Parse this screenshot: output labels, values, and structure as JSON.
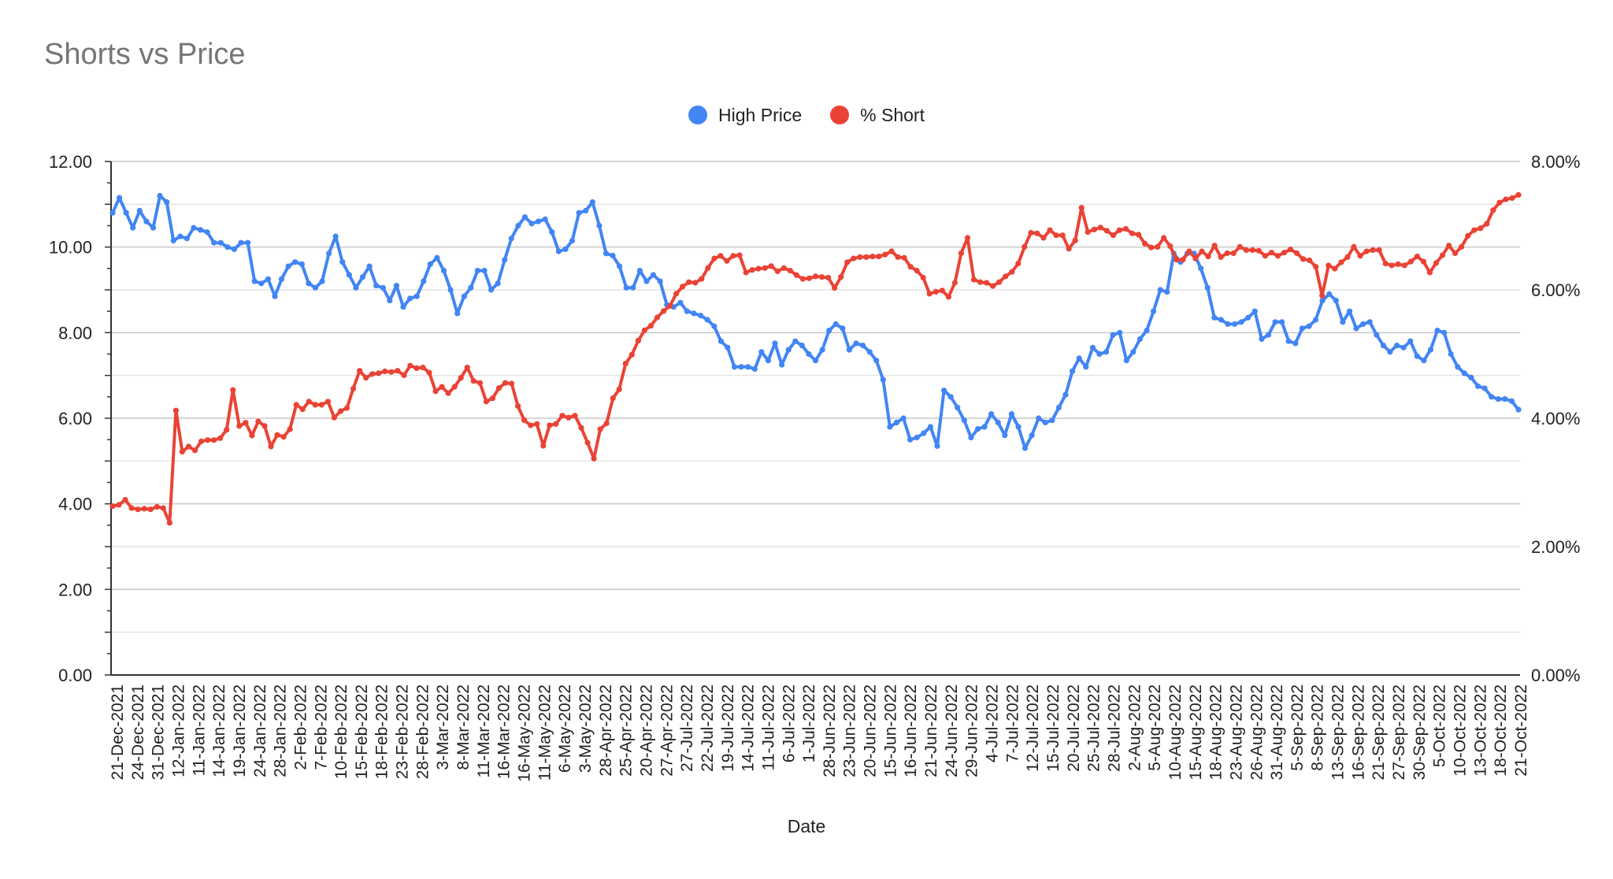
{
  "chart_data": {
    "type": "line",
    "title": "Shorts vs Price",
    "xlabel": "Date",
    "ylabel_left": "",
    "ylabel_right": "",
    "ylim_left": [
      0,
      12
    ],
    "ylim_right": [
      0,
      0.08
    ],
    "left_tick_labels": [
      "0.00",
      "2.00",
      "4.00",
      "6.00",
      "8.00",
      "10.00",
      "12.00"
    ],
    "right_tick_labels": [
      "0.00%",
      "2.00%",
      "4.00%",
      "6.00%",
      "8.00%"
    ],
    "grid": true,
    "legend_position": "top",
    "x_tick_labels": [
      "21-Dec-2021",
      "24-Dec-2021",
      "31-Dec-2021",
      "12-Jan-2022",
      "11-Jan-2022",
      "14-Jan-2022",
      "19-Jan-2022",
      "24-Jan-2022",
      "28-Jan-2022",
      "2-Feb-2022",
      "7-Feb-2022",
      "10-Feb-2022",
      "15-Feb-2022",
      "18-Feb-2022",
      "23-Feb-2022",
      "28-Feb-2022",
      "3-Mar-2022",
      "8-Mar-2022",
      "11-Mar-2022",
      "16-Mar-2022",
      "16-May-2022",
      "11-May-2022",
      "6-May-2022",
      "3-May-2022",
      "28-Apr-2022",
      "25-Apr-2022",
      "20-Apr-2022",
      "27-Apr-2022",
      "27-Jul-2022",
      "22-Jul-2022",
      "19-Jul-2022",
      "14-Jul-2022",
      "11-Jul-2022",
      "6-Jul-2022",
      "1-Jul-2022",
      "28-Jun-2022",
      "23-Jun-2022",
      "20-Jun-2022",
      "15-Jun-2022",
      "16-Jun-2022",
      "21-Jun-2022",
      "24-Jun-2022",
      "29-Jun-2022",
      "4-Jul-2022",
      "7-Jul-2022",
      "12-Jul-2022",
      "15-Jul-2022",
      "20-Jul-2022",
      "25-Jul-2022",
      "28-Jul-2022",
      "2-Aug-2022",
      "5-Aug-2022",
      "10-Aug-2022",
      "15-Aug-2022",
      "18-Aug-2022",
      "23-Aug-2022",
      "26-Aug-2022",
      "31-Aug-2022",
      "5-Sep-2022",
      "8-Sep-2022",
      "13-Sep-2022",
      "16-Sep-2022",
      "21-Sep-2022",
      "27-Sep-2022",
      "30-Sep-2022",
      "5-Oct-2022",
      "10-Oct-2022",
      "13-Oct-2022",
      "18-Oct-2022",
      "21-Oct-2022"
    ],
    "series": [
      {
        "name": "High Price",
        "axis": "left",
        "color": "#4285f4",
        "values": [
          10.8,
          11.15,
          10.8,
          10.45,
          10.85,
          10.6,
          10.45,
          11.2,
          11.05,
          10.15,
          10.25,
          10.2,
          10.45,
          10.4,
          10.35,
          10.1,
          10.1,
          10.0,
          9.95,
          10.1,
          10.1,
          9.2,
          9.15,
          9.25,
          8.85,
          9.25,
          9.55,
          9.65,
          9.6,
          9.15,
          9.05,
          9.2,
          9.85,
          10.25,
          9.65,
          9.35,
          9.05,
          9.3,
          9.55,
          9.1,
          9.05,
          8.75,
          9.1,
          8.6,
          8.8,
          8.85,
          9.2,
          9.6,
          9.75,
          9.45,
          9.0,
          8.45,
          8.85,
          9.05,
          9.45,
          9.45,
          9.0,
          9.15,
          9.7,
          10.2,
          10.5,
          10.7,
          10.55,
          10.6,
          10.65,
          10.35,
          9.9,
          9.95,
          10.15,
          10.8,
          10.85,
          11.05,
          10.5,
          9.85,
          9.8,
          9.55,
          9.05,
          9.05,
          9.45,
          9.2,
          9.35,
          9.2,
          8.65,
          8.6,
          8.7,
          8.5,
          8.45,
          8.4,
          8.3,
          8.15,
          7.8,
          7.65,
          7.2,
          7.2,
          7.2,
          7.15,
          7.55,
          7.35,
          7.75,
          7.25,
          7.6,
          7.8,
          7.7,
          7.5,
          7.35,
          7.6,
          8.05,
          8.2,
          8.1,
          7.6,
          7.75,
          7.7,
          7.55,
          7.35,
          6.9,
          5.8,
          5.9,
          6.0,
          5.5,
          5.55,
          5.65,
          5.8,
          5.35,
          6.65,
          6.5,
          6.25,
          5.95,
          5.55,
          5.75,
          5.8,
          6.1,
          5.9,
          5.6,
          6.1,
          5.8,
          5.3,
          5.6,
          6.0,
          5.9,
          5.95,
          6.25,
          6.55,
          7.1,
          7.4,
          7.2,
          7.65,
          7.5,
          7.55,
          7.95,
          8.0,
          7.35,
          7.55,
          7.85,
          8.05,
          8.5,
          9.0,
          8.95,
          9.85,
          9.65,
          9.85,
          9.85,
          9.5,
          9.05,
          8.35,
          8.3,
          8.2,
          8.2,
          8.25,
          8.35,
          8.5,
          7.85,
          7.95,
          8.25,
          8.25,
          7.8,
          7.75,
          8.1,
          8.15,
          8.3,
          8.75,
          8.9,
          8.75,
          8.25,
          8.5,
          8.1,
          8.2,
          8.25,
          7.95,
          7.7,
          7.55,
          7.7,
          7.65,
          7.8,
          7.45,
          7.35,
          7.6,
          8.05,
          8.0,
          7.5,
          7.2,
          7.05,
          6.95,
          6.75,
          6.7,
          6.5,
          6.45,
          6.45,
          6.4,
          6.2
        ]
      },
      {
        "name": "% Short",
        "axis": "right",
        "color": "#ea4335",
        "values": [
          0.0263,
          0.0265,
          0.0273,
          0.026,
          0.0258,
          0.0259,
          0.0258,
          0.0262,
          0.026,
          0.0237,
          0.0412,
          0.0348,
          0.0356,
          0.035,
          0.0364,
          0.0366,
          0.0366,
          0.0369,
          0.0382,
          0.0444,
          0.0388,
          0.0393,
          0.0373,
          0.0395,
          0.0388,
          0.0356,
          0.0374,
          0.0371,
          0.0383,
          0.0421,
          0.0414,
          0.0426,
          0.0421,
          0.0421,
          0.0426,
          0.0401,
          0.0411,
          0.0416,
          0.0446,
          0.0474,
          0.0463,
          0.0469,
          0.047,
          0.0473,
          0.0472,
          0.0474,
          0.0467,
          0.0482,
          0.0478,
          0.0479,
          0.0471,
          0.0442,
          0.0449,
          0.0439,
          0.0449,
          0.0463,
          0.0479,
          0.0458,
          0.0455,
          0.0426,
          0.0431,
          0.0447,
          0.0455,
          0.0454,
          0.0419,
          0.0397,
          0.0389,
          0.0391,
          0.0357,
          0.0389,
          0.0391,
          0.0404,
          0.0401,
          0.0404,
          0.0385,
          0.0362,
          0.0337,
          0.0383,
          0.0392,
          0.0431,
          0.0445,
          0.0485,
          0.0499,
          0.0521,
          0.0537,
          0.0544,
          0.0557,
          0.0567,
          0.0575,
          0.0594,
          0.0605,
          0.0612,
          0.0611,
          0.0617,
          0.0634,
          0.0649,
          0.0653,
          0.0645,
          0.0653,
          0.0654,
          0.0627,
          0.0631,
          0.0633,
          0.0634,
          0.0637,
          0.0629,
          0.0634,
          0.063,
          0.0623,
          0.0617,
          0.0618,
          0.0621,
          0.062,
          0.0619,
          0.0603,
          0.062,
          0.0643,
          0.0649,
          0.0651,
          0.0651,
          0.0652,
          0.0652,
          0.0655,
          0.066,
          0.0651,
          0.065,
          0.0636,
          0.063,
          0.0619,
          0.0594,
          0.0597,
          0.0599,
          0.0589,
          0.0611,
          0.0657,
          0.0681,
          0.0616,
          0.0612,
          0.0611,
          0.0606,
          0.0612,
          0.0621,
          0.0628,
          0.0641,
          0.0667,
          0.0689,
          0.0688,
          0.0681,
          0.0693,
          0.0685,
          0.0685,
          0.0664,
          0.0677,
          0.0728,
          0.069,
          0.0694,
          0.0697,
          0.0692,
          0.0685,
          0.0693,
          0.0695,
          0.0688,
          0.0686,
          0.0672,
          0.0666,
          0.0667,
          0.0681,
          0.0668,
          0.0647,
          0.0647,
          0.066,
          0.0649,
          0.066,
          0.0652,
          0.0669,
          0.0651,
          0.0657,
          0.0657,
          0.0667,
          0.0662,
          0.0662,
          0.0661,
          0.0653,
          0.0658,
          0.0653,
          0.0658,
          0.0663,
          0.0657,
          0.0648,
          0.0646,
          0.0636,
          0.0591,
          0.0638,
          0.0633,
          0.0643,
          0.0651,
          0.0667,
          0.0653,
          0.066,
          0.0662,
          0.0662,
          0.0641,
          0.0638,
          0.064,
          0.0638,
          0.0644,
          0.0652,
          0.0644,
          0.0627,
          0.0642,
          0.0654,
          0.0669,
          0.0657,
          0.0667,
          0.0684,
          0.0693,
          0.0696,
          0.0703,
          0.0724,
          0.0736,
          0.0741,
          0.0743,
          0.0748
        ]
      }
    ]
  }
}
